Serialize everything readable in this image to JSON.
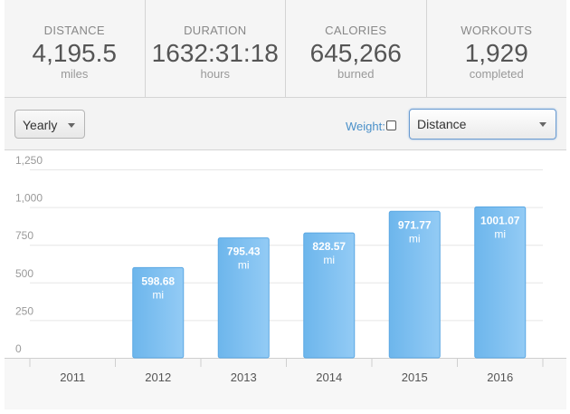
{
  "stats": [
    {
      "label": "DISTANCE",
      "value": "4,195.5",
      "unit": "miles"
    },
    {
      "label": "DURATION",
      "value": "1632:31:18",
      "unit": "hours"
    },
    {
      "label": "CALORIES",
      "value": "645,266",
      "unit": "burned"
    },
    {
      "label": "WORKOUTS",
      "value": "1,929",
      "unit": "completed"
    }
  ],
  "toolbar": {
    "period_select": "Yearly",
    "weight_label": "Weight:",
    "weight_checked": false,
    "metric_select": "Distance"
  },
  "chart_data": {
    "type": "bar",
    "categories": [
      "2011",
      "2012",
      "2013",
      "2014",
      "2015",
      "2016"
    ],
    "values": [
      0,
      598.68,
      795.43,
      828.57,
      971.77,
      1001.07
    ],
    "labels": [
      "",
      "598.68",
      "795.43",
      "828.57",
      "971.77",
      "1001.07"
    ],
    "unit": "mi",
    "yticks": [
      "0",
      "250",
      "500",
      "750",
      "1,000",
      "1,250"
    ],
    "ylim": [
      0,
      1250
    ],
    "grid": true,
    "bar_color": "#6db6ec",
    "bar_color_light": "#93cbf5",
    "bar_border": "#5aa7e3"
  }
}
